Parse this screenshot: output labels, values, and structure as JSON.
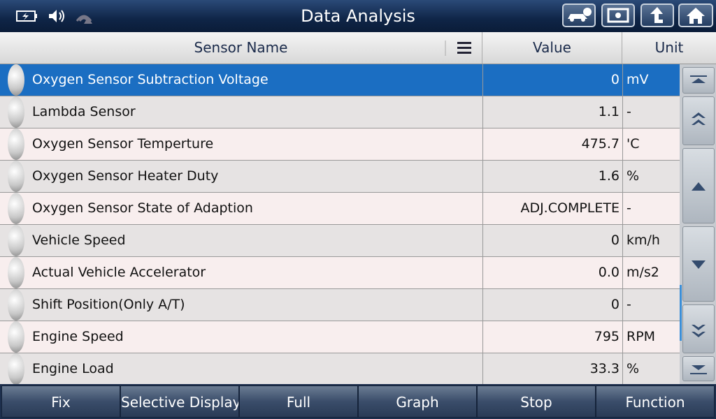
{
  "header": {
    "title": "Data Analysis"
  },
  "table": {
    "columns": [
      "Sensor Name",
      "Value",
      "Unit"
    ],
    "rows": [
      [
        "Oxygen Sensor Subtraction Voltage",
        "0",
        "mV"
      ],
      [
        "Lambda Sensor",
        "1.1",
        "-"
      ],
      [
        "Oxygen Sensor Temperture",
        "475.7",
        "'C"
      ],
      [
        "Oxygen Sensor Heater Duty",
        "1.6",
        "%"
      ],
      [
        "Oxygen Sensor State of Adaption",
        "ADJ.COMPLETE",
        "-"
      ],
      [
        "Vehicle Speed",
        "0",
        "km/h"
      ],
      [
        "Actual Vehicle Accelerator",
        "0.0",
        "m/s2"
      ],
      [
        "Shift Position(Only A/T)",
        "0",
        "-"
      ],
      [
        "Engine Speed",
        "795",
        "RPM"
      ],
      [
        "Engine Load",
        "33.3",
        "%"
      ]
    ]
  },
  "buttons": [
    "Fix",
    "Selective Display",
    "Full",
    "Graph",
    "Stop",
    "Function"
  ]
}
